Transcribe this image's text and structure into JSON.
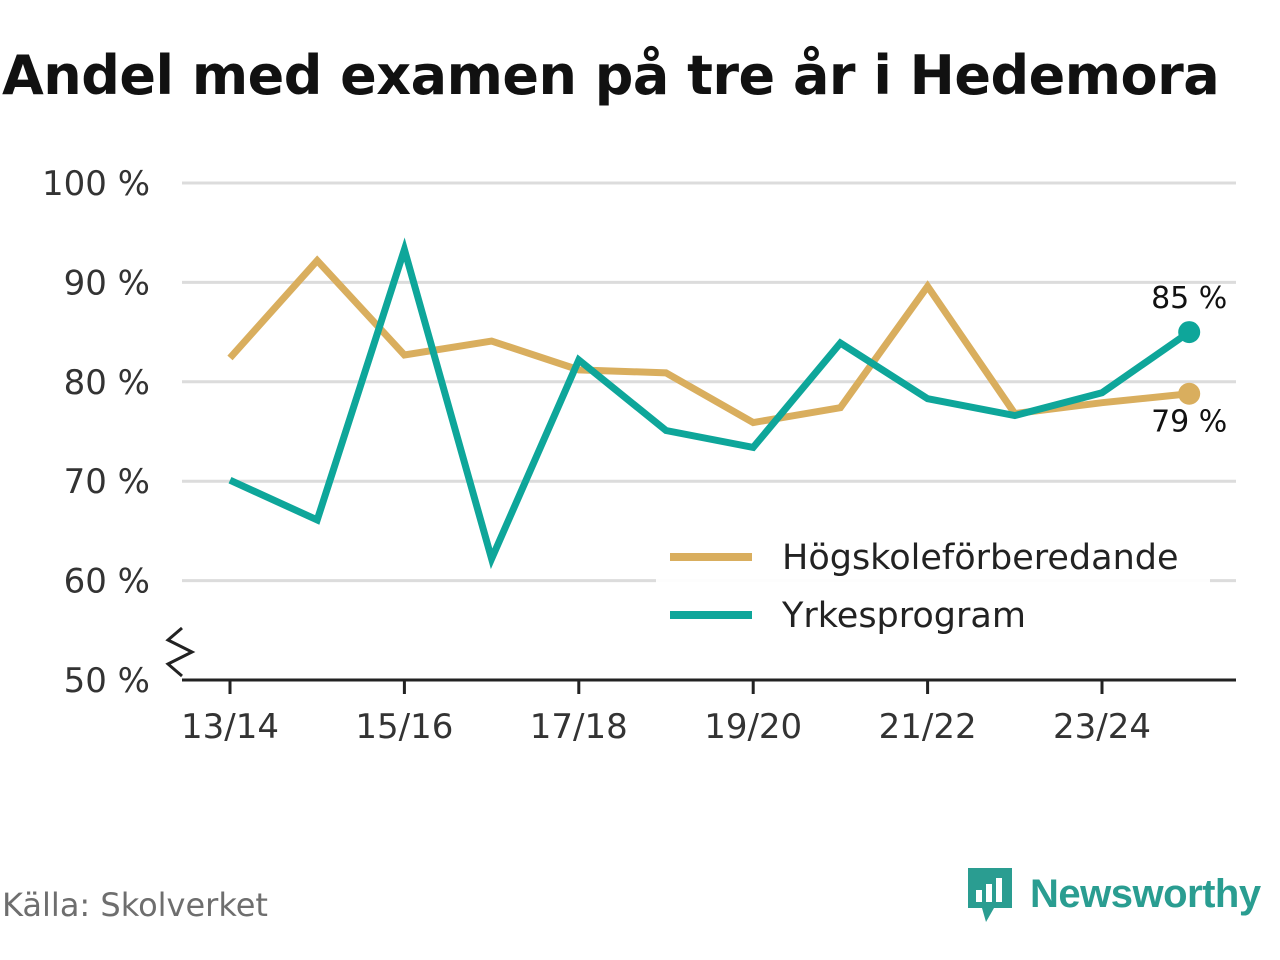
{
  "title": "Andel med examen på tre år i Hedemora",
  "source": "Källa: Skolverket",
  "brand": {
    "name": "Newsworthy",
    "icon": "newsworthy-logo-icon",
    "color": "#2a9d91"
  },
  "chart_data": {
    "type": "line",
    "title": "Andel med examen på tre år i Hedemora",
    "x": [
      "13/14",
      "14/15",
      "15/16",
      "16/17",
      "17/18",
      "18/19",
      "19/20",
      "20/21",
      "21/22",
      "22/23",
      "23/24",
      "24/25"
    ],
    "x_tick_labels": [
      "13/14",
      "15/16",
      "17/18",
      "19/20",
      "21/22",
      "23/24"
    ],
    "ylim": [
      50,
      100
    ],
    "y_ticks": [
      50,
      60,
      70,
      80,
      90,
      100
    ],
    "y_tick_labels": [
      "50 %",
      "60 %",
      "70 %",
      "80 %",
      "90 %",
      "100 %"
    ],
    "y_axis_break": true,
    "grid": true,
    "legend_position": "bottom-right",
    "series": [
      {
        "name": "Högskoleförberedande",
        "color": "#d9ae5e",
        "values": [
          82.4,
          92.2,
          82.7,
          84.1,
          81.2,
          80.9,
          75.9,
          77.4,
          89.6,
          76.8,
          77.9,
          78.8
        ],
        "end_label": "79 %"
      },
      {
        "name": "Yrkesprogram",
        "color": "#0ea69a",
        "values": [
          70.1,
          66.1,
          93.3,
          62.2,
          82.2,
          75.1,
          73.4,
          83.9,
          78.3,
          76.6,
          78.9,
          85.0
        ],
        "end_label": "85 %"
      }
    ]
  }
}
